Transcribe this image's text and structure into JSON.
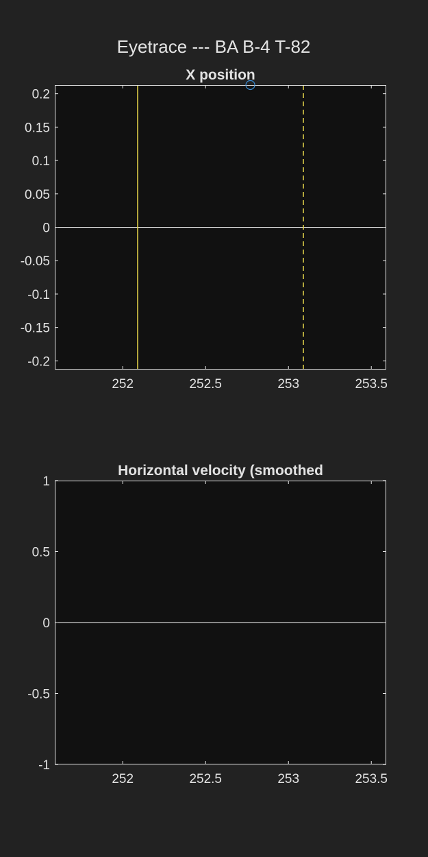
{
  "figure": {
    "title": "Eyetrace --- BA B-4 T-82",
    "background": "#222222",
    "axes_background": "#111111",
    "axes_color": "#e6e6e6"
  },
  "chart_data": [
    {
      "type": "line",
      "title": "X position",
      "xlim": [
        251.59,
        253.59
      ],
      "ylim": [
        -0.213,
        0.213
      ],
      "xticks": [
        {
          "value": 252,
          "label": "252"
        },
        {
          "value": 252.5,
          "label": "252.5"
        },
        {
          "value": 253,
          "label": "253"
        },
        {
          "value": 253.5,
          "label": "253.5"
        }
      ],
      "yticks": [
        {
          "value": 0.2,
          "label": "0.2"
        },
        {
          "value": 0.15,
          "label": "0.15"
        },
        {
          "value": 0.1,
          "label": "0.1"
        },
        {
          "value": 0.05,
          "label": "0.05"
        },
        {
          "value": 0,
          "label": "0"
        },
        {
          "value": -0.05,
          "label": "-0.05"
        },
        {
          "value": -0.1,
          "label": "-0.1"
        },
        {
          "value": -0.15,
          "label": "-0.15"
        },
        {
          "value": -0.2,
          "label": "-0.2"
        }
      ],
      "hlines": [
        {
          "y": 0,
          "color": "#ffffff",
          "style": "solid"
        }
      ],
      "vlines": [
        {
          "x": 252.09,
          "color": "#e8d84a",
          "style": "solid"
        },
        {
          "x": 253.09,
          "color": "#e8d84a",
          "style": "dashed"
        }
      ],
      "markers": [
        {
          "x": 252.77,
          "y": 0.213,
          "shape": "circle",
          "color": "#3b8ed6"
        }
      ],
      "grid": false
    },
    {
      "type": "line",
      "title": "Horizontal velocity (smoothed",
      "xlim": [
        251.59,
        253.59
      ],
      "ylim": [
        -1,
        1
      ],
      "xticks": [
        {
          "value": 252,
          "label": "252"
        },
        {
          "value": 252.5,
          "label": "252.5"
        },
        {
          "value": 253,
          "label": "253"
        },
        {
          "value": 253.5,
          "label": "253.5"
        }
      ],
      "yticks": [
        {
          "value": 1,
          "label": "1"
        },
        {
          "value": 0.5,
          "label": "0.5"
        },
        {
          "value": 0,
          "label": "0"
        },
        {
          "value": -0.5,
          "label": "-0.5"
        },
        {
          "value": -1,
          "label": "-1"
        }
      ],
      "hlines": [
        {
          "y": 0,
          "color": "#ffffff",
          "style": "solid"
        }
      ],
      "vlines": [],
      "markers": [],
      "grid": false
    }
  ]
}
